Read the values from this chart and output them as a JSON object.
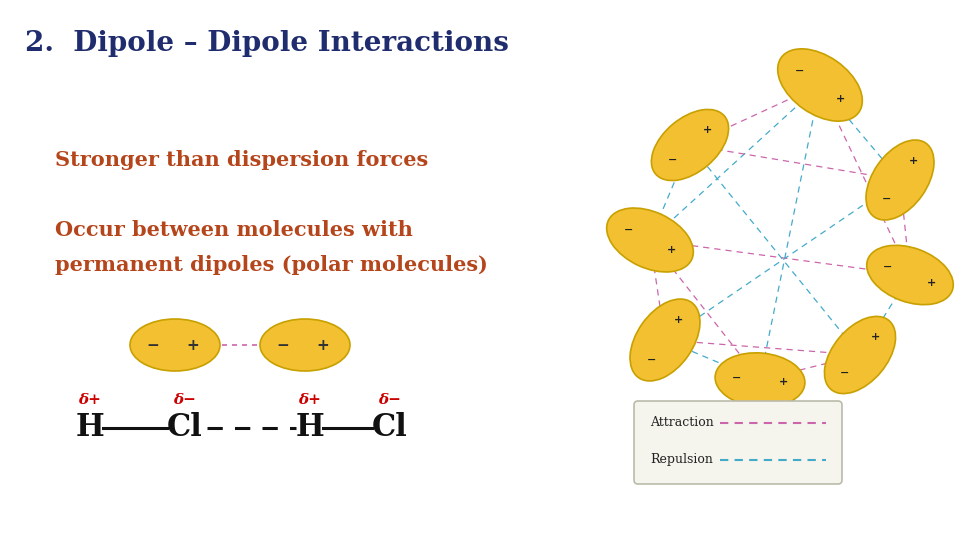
{
  "title": "2.  Dipole – Dipole Interactions",
  "title_color": "#1f2d6e",
  "title_fontsize": 20,
  "bg_color": "#ffffff",
  "text1": "Stronger than dispersion forces",
  "text1_color": "#b5451b",
  "text1_fontsize": 15,
  "text2a": "Occur between molecules with",
  "text2b": "permanent dipoles (polar molecules)",
  "text2_color": "#b5451b",
  "text2_fontsize": 15,
  "dipole_molecule_color": "#f2c030",
  "dipole_molecule_edge": "#c8a000",
  "attraction_color": "#cc66aa",
  "repulsion_color": "#44aacc",
  "ellipse_color": "#f2c030",
  "ellipse_edge_color": "#c8a000",
  "hcl_delta_color": "#cc0000",
  "legend_attraction_color": "#cc66aa",
  "legend_repulsion_color": "#44aacc"
}
